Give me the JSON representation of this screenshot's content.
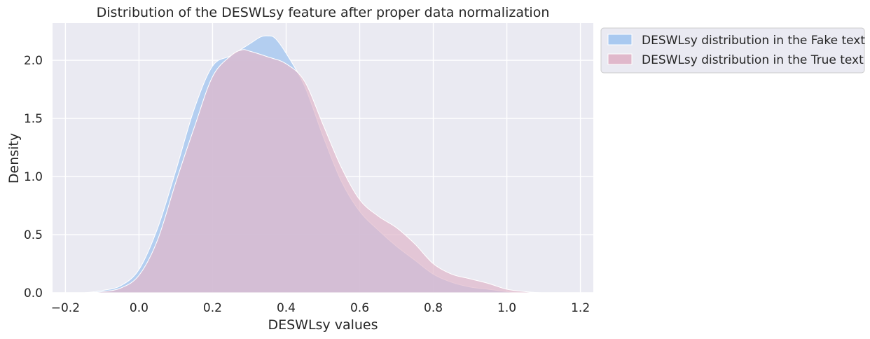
{
  "chart_data": {
    "type": "area",
    "title": "Distribution of the DESWLsy feature after proper data normalization",
    "xlabel": "DESWLsy values",
    "ylabel": "Density",
    "xlim": [
      -0.235,
      1.235
    ],
    "ylim": [
      0,
      2.32
    ],
    "xticks": [
      -0.2,
      0.0,
      0.2,
      0.4,
      0.6,
      0.8,
      1.0,
      1.2
    ],
    "xtick_labels": [
      "−0.2",
      "0.0",
      "0.2",
      "0.4",
      "0.6",
      "0.8",
      "1.0",
      "1.2"
    ],
    "yticks": [
      0.0,
      0.5,
      1.0,
      1.5,
      2.0
    ],
    "ytick_labels": [
      "0.0",
      "0.5",
      "1.0",
      "1.5",
      "2.0"
    ],
    "grid": true,
    "legend_position": "outside upper right",
    "series": [
      {
        "name": "DESWLsy distribution in the Fake text",
        "color": "#a9c9f0",
        "x": [
          -0.2,
          -0.15,
          -0.1,
          -0.05,
          0.0,
          0.05,
          0.1,
          0.15,
          0.2,
          0.25,
          0.3,
          0.33,
          0.35,
          0.37,
          0.4,
          0.45,
          0.5,
          0.55,
          0.6,
          0.65,
          0.7,
          0.75,
          0.8,
          0.85,
          0.9,
          0.95,
          1.0,
          1.05,
          1.1,
          1.15
        ],
        "y": [
          0.0,
          0.0,
          0.02,
          0.06,
          0.2,
          0.55,
          1.05,
          1.58,
          1.95,
          2.04,
          2.14,
          2.2,
          2.21,
          2.19,
          2.06,
          1.78,
          1.35,
          0.96,
          0.7,
          0.54,
          0.4,
          0.28,
          0.16,
          0.09,
          0.05,
          0.03,
          0.01,
          0.0,
          0.0,
          0.0
        ]
      },
      {
        "name": "DESWLsy distribution in the True text",
        "color": "#e0b8cb",
        "x": [
          -0.2,
          -0.15,
          -0.1,
          -0.05,
          0.0,
          0.05,
          0.1,
          0.15,
          0.2,
          0.25,
          0.28,
          0.3,
          0.35,
          0.4,
          0.45,
          0.5,
          0.55,
          0.6,
          0.65,
          0.7,
          0.75,
          0.8,
          0.85,
          0.9,
          0.95,
          1.0,
          1.05,
          1.1,
          1.15
        ],
        "y": [
          0.0,
          0.0,
          0.01,
          0.04,
          0.15,
          0.45,
          0.95,
          1.42,
          1.86,
          2.04,
          2.09,
          2.08,
          2.03,
          1.97,
          1.82,
          1.45,
          1.08,
          0.8,
          0.66,
          0.56,
          0.42,
          0.25,
          0.16,
          0.12,
          0.08,
          0.03,
          0.01,
          0.0,
          0.0
        ]
      }
    ]
  },
  "colors": {
    "plot_background": "#eaeaf2",
    "grid": "#ffffff",
    "overlap": "#b3a8cf"
  }
}
